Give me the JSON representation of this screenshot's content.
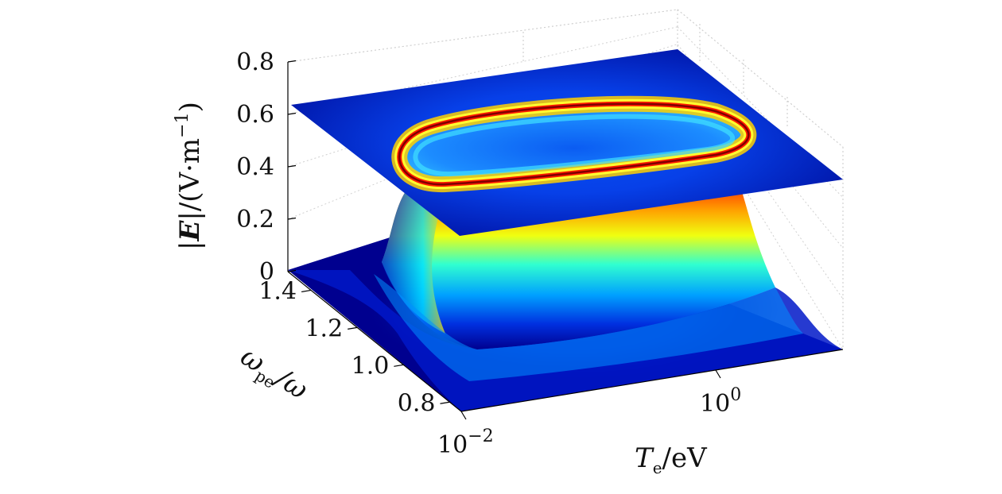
{
  "chart_data": {
    "type": "surface3d",
    "title": "",
    "zlabel": "|E|/(V·m⁻¹)",
    "zlabel_parts": {
      "pre": "|",
      "bold": "E",
      "mid": "|/(V·m",
      "sup": "−1",
      "post": ")"
    },
    "ylabel": "ωpe/ω",
    "ylabel_parts": {
      "base": "ω",
      "sub": "pe",
      "post": "/ω"
    },
    "xlabel": "Te/eV",
    "xlabel_parts": {
      "base": "T",
      "sub": "e",
      "post": "/eV"
    },
    "x_scale": "log",
    "xlim": [
      0.01,
      10
    ],
    "x_ticks": [
      {
        "value": 0.01,
        "base": "10",
        "exp": "−2"
      },
      {
        "value": 1,
        "base": "10",
        "exp": "0"
      }
    ],
    "ylim": [
      0.75,
      1.5
    ],
    "y_ticks": [
      "0.8",
      "1.0",
      "1.2",
      "1.4"
    ],
    "y_tick_values": [
      0.8,
      1.0,
      1.2,
      1.4
    ],
    "zlim": [
      0,
      0.8
    ],
    "z_ticks": [
      "0",
      "0.2",
      "0.4",
      "0.6",
      "0.8"
    ],
    "z_tick_values": [
      0,
      0.2,
      0.4,
      0.6,
      0.8
    ],
    "colormap": "jet",
    "colormap_stops": [
      "#00008f",
      "#0000ff",
      "#00ffff",
      "#ffff00",
      "#ff0000",
      "#800000"
    ],
    "grid": true,
    "surface": {
      "description": "|E| versus T_e and ω_pe/ω; near zero outside a plateau region, peaking around 0.5–0.6 at 0.9<ωpe/ω<1.4",
      "baseline": 0.02,
      "plateau_peak": 0.55
    },
    "contour_plane": {
      "z": 0.63,
      "ring_level": "max"
    }
  }
}
